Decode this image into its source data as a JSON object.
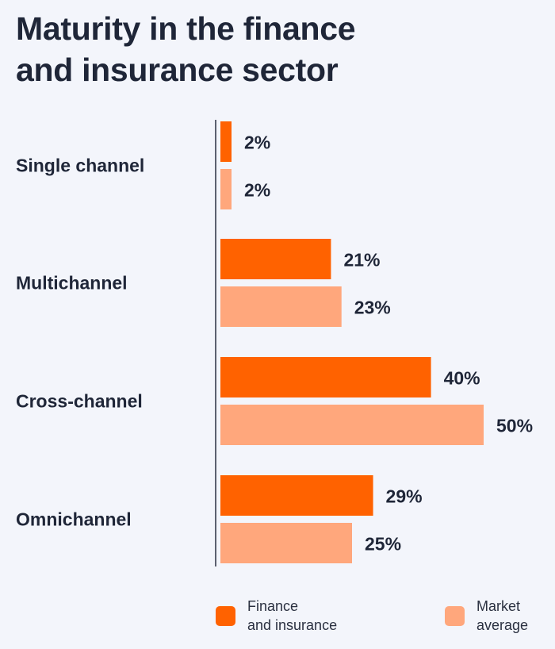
{
  "title": {
    "line1": "Maturity in the finance",
    "line2": "and insurance sector"
  },
  "legend": [
    {
      "line1": "Finance",
      "line2": "and insurance",
      "color": "#FF6200"
    },
    {
      "line1": "Market",
      "line2": "average",
      "color": "#FFA77C"
    }
  ],
  "chart_data": {
    "type": "bar",
    "orientation": "horizontal",
    "title": "Maturity in the finance and insurance sector",
    "categories": [
      "Single channel",
      "Multichannel",
      "Cross-channel",
      "Omnichannel"
    ],
    "series": [
      {
        "name": "Finance and insurance",
        "color": "#FF6200",
        "values": [
          2,
          21,
          40,
          29
        ],
        "labels": [
          "2%",
          "21%",
          "40%",
          "29%"
        ]
      },
      {
        "name": "Market average",
        "color": "#FFA77C",
        "values": [
          2,
          23,
          50,
          25
        ],
        "labels": [
          "2%",
          "23%",
          "50%",
          "25%"
        ]
      }
    ],
    "unit": "%",
    "xlim": [
      0,
      50
    ],
    "grid": false,
    "legend_position": "bottom"
  }
}
